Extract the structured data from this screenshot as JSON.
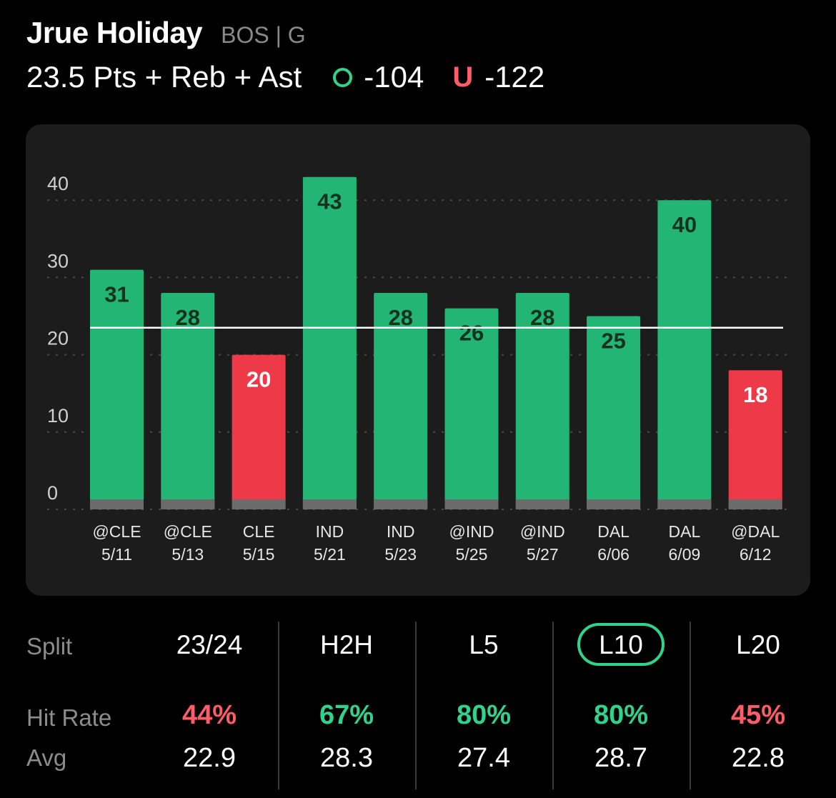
{
  "header": {
    "player_name": "Jrue Holiday",
    "team_position": "BOS | G",
    "prop_line": "23.5 Pts + Reb + Ast",
    "over_symbol": "O",
    "over_odds": "-104",
    "under_symbol": "U",
    "under_odds": "-122"
  },
  "colors": {
    "over_green": "#2fd48a",
    "bar_green": "#22b573",
    "bar_red": "#ee3a48",
    "under_red": "#ff5c6a"
  },
  "chart_data": {
    "type": "bar",
    "categories": [
      "@CLE 5/11",
      "@CLE 5/13",
      "CLE 5/15",
      "IND 5/21",
      "IND 5/23",
      "@IND 5/25",
      "@IND 5/27",
      "DAL 6/06",
      "DAL 6/09",
      "@DAL 6/12"
    ],
    "opponents": [
      "@CLE",
      "@CLE",
      "CLE",
      "IND",
      "IND",
      "@IND",
      "@IND",
      "DAL",
      "DAL",
      "@DAL"
    ],
    "dates": [
      "5/11",
      "5/13",
      "5/15",
      "5/21",
      "5/23",
      "5/25",
      "5/27",
      "6/06",
      "6/09",
      "6/12"
    ],
    "values": [
      31,
      28,
      20,
      43,
      28,
      26,
      28,
      25,
      40,
      18
    ],
    "line": 23.5,
    "yticks": [
      0,
      10,
      20,
      30,
      40
    ],
    "ylim": [
      0,
      44
    ],
    "grid": true
  },
  "splits": {
    "row_labels": {
      "split": "Split",
      "hit_rate": "Hit Rate",
      "avg": "Avg"
    },
    "columns": [
      {
        "label": "23/24",
        "hit_rate": "44%",
        "hit": false,
        "avg": "22.9",
        "selected": false
      },
      {
        "label": "H2H",
        "hit_rate": "67%",
        "hit": true,
        "avg": "28.3",
        "selected": false
      },
      {
        "label": "L5",
        "hit_rate": "80%",
        "hit": true,
        "avg": "27.4",
        "selected": false
      },
      {
        "label": "L10",
        "hit_rate": "80%",
        "hit": true,
        "avg": "28.7",
        "selected": true
      },
      {
        "label": "L20",
        "hit_rate": "45%",
        "hit": false,
        "avg": "22.8",
        "selected": false
      }
    ]
  }
}
